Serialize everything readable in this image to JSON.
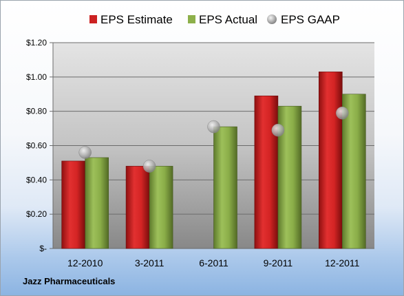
{
  "chart_data": {
    "type": "bar",
    "categories": [
      "12-2010",
      "3-2011",
      "6-2011",
      "9-2011",
      "12-2011"
    ],
    "series": [
      {
        "name": "EPS Estimate",
        "kind": "bar",
        "values": [
          0.51,
          0.48,
          null,
          0.89,
          1.03
        ]
      },
      {
        "name": "EPS Actual",
        "kind": "bar",
        "values": [
          0.53,
          0.48,
          0.71,
          0.83,
          0.9
        ]
      },
      {
        "name": "EPS GAAP",
        "kind": "marker",
        "values": [
          0.56,
          0.48,
          0.71,
          0.69,
          0.79
        ]
      }
    ],
    "ylim": [
      0,
      1.2
    ],
    "yticks": [
      {
        "value": 0,
        "label": "$-"
      },
      {
        "value": 0.2,
        "label": "$0.20"
      },
      {
        "value": 0.4,
        "label": "$0.40"
      },
      {
        "value": 0.6,
        "label": "$0.60"
      },
      {
        "value": 0.8,
        "label": "$0.80"
      },
      {
        "value": 1.0,
        "label": "$1.00"
      },
      {
        "value": 1.2,
        "label": "$1.20"
      }
    ],
    "grid": true,
    "legend_position": "top"
  },
  "company": "Jazz Pharmaceuticals",
  "colors": {
    "estimate": "#cc2222",
    "actual": "#8db04a",
    "gaap": "#a8a8a8"
  }
}
